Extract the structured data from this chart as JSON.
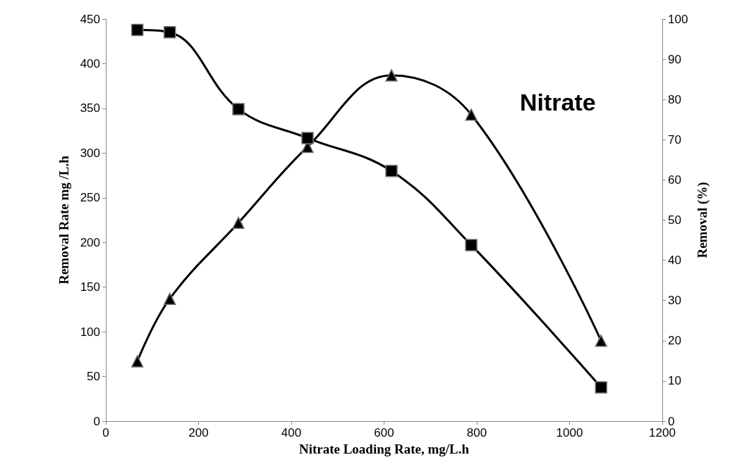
{
  "chart_data": {
    "type": "line",
    "xlabel": "Nitrate Loading Rate, mg/L.h",
    "ylabel": "Removal Rate mg /L.h",
    "y2label": "Removal (%)",
    "annotations": [
      "Nitrate"
    ],
    "x": [
      68,
      138,
      286,
      435,
      616,
      788,
      1068
    ],
    "series": [
      {
        "color": "#000000",
        "marker": "triangle",
        "values": [
          67,
          137,
          222,
          307,
          387,
          343,
          90
        ]
      },
      {
        "color": "#000000",
        "marker": "square",
        "axis": "y2",
        "values": [
          97.3,
          96.7,
          77.6,
          70.4,
          62.2,
          43.8,
          8.4
        ]
      }
    ],
    "xlim": [
      0,
      1200
    ],
    "xticks": [
      0,
      200,
      400,
      600,
      800,
      1000,
      1200
    ],
    "ylim": [
      0,
      450
    ],
    "yticks": [
      0,
      50,
      100,
      150,
      200,
      250,
      300,
      350,
      400,
      450
    ],
    "y2lim": [
      0,
      100
    ],
    "y2ticks": [
      0,
      10,
      20,
      30,
      40,
      50,
      60,
      70,
      80,
      90,
      100
    ],
    "tick_labels": true
  }
}
